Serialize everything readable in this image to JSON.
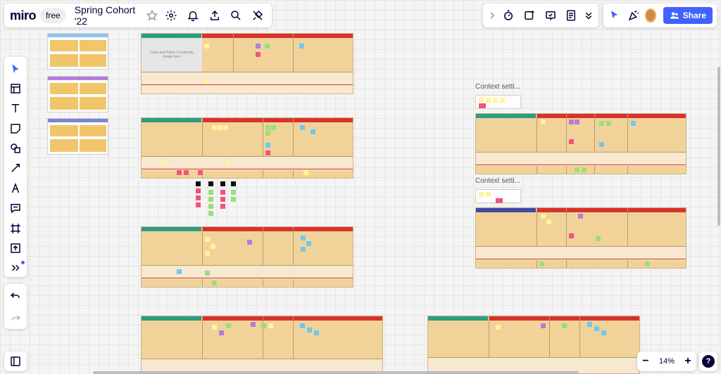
{
  "app": {
    "logo": "miro",
    "plan_badge": "free",
    "board_title": "Spring Cohort '22"
  },
  "top_right": {
    "share_label": "Share"
  },
  "zoom": {
    "level": "14%",
    "minus": "−",
    "plus": "+",
    "help": "?"
  },
  "board_texts": {
    "placeholder_text": "Copy and Paste Complexity Image here",
    "context_label_1": "Context setti...",
    "context_label_2": "Context setti..."
  },
  "left_toolbar": {
    "tools": [
      "select",
      "frame",
      "text",
      "sticky-note",
      "shapes",
      "connection-line",
      "pen",
      "comment",
      "frame-grid",
      "upload",
      "more-tools"
    ]
  },
  "colors": {
    "accent": "#4262ff",
    "board_fill": "#f1d39a",
    "header_green": "#2a9d83",
    "header_purple": "#3f4aa8"
  }
}
